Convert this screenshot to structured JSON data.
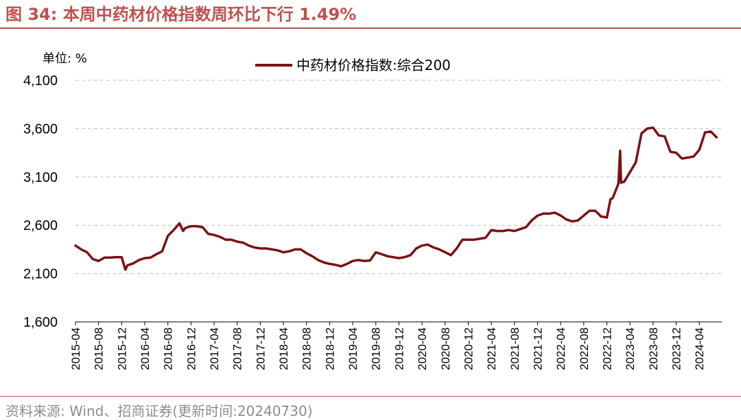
{
  "header": {
    "title": "图 34:  本周中药材价格指数周环比下行 1.49%"
  },
  "unit_label": "单位:  %",
  "source_note": "资料来源:  Wind、招商证券(更新时间:20240730)",
  "colors": {
    "accent": "#c0504d",
    "series": "#7b1113",
    "grid": "#bfbfbf",
    "source": "#8c8c8c"
  },
  "chart_data": {
    "type": "line",
    "title": "",
    "xlabel": "",
    "ylabel": "",
    "ylim": [
      1600,
      4100
    ],
    "y_ticks": [
      1600,
      2100,
      2600,
      3100,
      3600,
      4100
    ],
    "y_tick_labels": [
      "1,600",
      "2,100",
      "2,600",
      "3,100",
      "3,600",
      "4,100"
    ],
    "x_range": [
      "2015-04",
      "2024-07"
    ],
    "x_tick_labels": [
      "2015-04",
      "2015-08",
      "2015-12",
      "2016-04",
      "2016-08",
      "2016-12",
      "2017-04",
      "2017-08",
      "2017-12",
      "2018-04",
      "2018-08",
      "2018-12",
      "2019-04",
      "2019-08",
      "2019-12",
      "2020-04",
      "2020-08",
      "2020-12",
      "2021-04",
      "2021-08",
      "2021-12",
      "2022-04",
      "2022-08",
      "2022-12",
      "2023-04",
      "2023-08",
      "2023-12",
      "2024-04"
    ],
    "grid": "horizontal dashed",
    "legend_position": "top-center",
    "series": [
      {
        "name": "中药材价格指数:综合200",
        "points": [
          [
            "2015-04",
            2390
          ],
          [
            "2015-05",
            2350
          ],
          [
            "2015-06",
            2320
          ],
          [
            "2015-07",
            2250
          ],
          [
            "2015-08",
            2230
          ],
          [
            "2015-09",
            2265
          ],
          [
            "2015-10",
            2265
          ],
          [
            "2015-11",
            2270
          ],
          [
            "2015-12",
            2270
          ],
          [
            "2015-12-20",
            2140
          ],
          [
            "2016-01",
            2185
          ],
          [
            "2016-02",
            2205
          ],
          [
            "2016-03",
            2240
          ],
          [
            "2016-04",
            2260
          ],
          [
            "2016-05",
            2265
          ],
          [
            "2016-06",
            2300
          ],
          [
            "2016-07",
            2330
          ],
          [
            "2016-08",
            2490
          ],
          [
            "2016-09",
            2550
          ],
          [
            "2016-10",
            2620
          ],
          [
            "2016-10-20",
            2540
          ],
          [
            "2016-11",
            2570
          ],
          [
            "2016-12",
            2590
          ],
          [
            "2017-01",
            2590
          ],
          [
            "2017-02",
            2580
          ],
          [
            "2017-03",
            2510
          ],
          [
            "2017-04",
            2500
          ],
          [
            "2017-05",
            2480
          ],
          [
            "2017-06",
            2450
          ],
          [
            "2017-07",
            2450
          ],
          [
            "2017-08",
            2430
          ],
          [
            "2017-09",
            2420
          ],
          [
            "2017-10",
            2390
          ],
          [
            "2017-11",
            2370
          ],
          [
            "2017-12",
            2360
          ],
          [
            "2018-01",
            2360
          ],
          [
            "2018-02",
            2350
          ],
          [
            "2018-03",
            2340
          ],
          [
            "2018-04",
            2320
          ],
          [
            "2018-05",
            2330
          ],
          [
            "2018-06",
            2350
          ],
          [
            "2018-07",
            2350
          ],
          [
            "2018-08",
            2310
          ],
          [
            "2018-09",
            2280
          ],
          [
            "2018-10",
            2240
          ],
          [
            "2018-11",
            2215
          ],
          [
            "2018-12",
            2200
          ],
          [
            "2019-01",
            2190
          ],
          [
            "2019-02",
            2175
          ],
          [
            "2019-03",
            2200
          ],
          [
            "2019-04",
            2230
          ],
          [
            "2019-05",
            2240
          ],
          [
            "2019-06",
            2230
          ],
          [
            "2019-07",
            2235
          ],
          [
            "2019-08",
            2320
          ],
          [
            "2019-09",
            2300
          ],
          [
            "2019-10",
            2280
          ],
          [
            "2019-11",
            2270
          ],
          [
            "2019-12",
            2260
          ],
          [
            "2020-01",
            2270
          ],
          [
            "2020-02",
            2290
          ],
          [
            "2020-03",
            2360
          ],
          [
            "2020-04",
            2390
          ],
          [
            "2020-05",
            2400
          ],
          [
            "2020-06",
            2370
          ],
          [
            "2020-07",
            2350
          ],
          [
            "2020-08",
            2320
          ],
          [
            "2020-09",
            2290
          ],
          [
            "2020-10",
            2360
          ],
          [
            "2020-11",
            2450
          ],
          [
            "2020-12",
            2450
          ],
          [
            "2021-01",
            2450
          ],
          [
            "2021-02",
            2460
          ],
          [
            "2021-03",
            2470
          ],
          [
            "2021-04",
            2550
          ],
          [
            "2021-05",
            2540
          ],
          [
            "2021-06",
            2540
          ],
          [
            "2021-07",
            2550
          ],
          [
            "2021-08",
            2540
          ],
          [
            "2021-09",
            2560
          ],
          [
            "2021-10",
            2580
          ],
          [
            "2021-11",
            2650
          ],
          [
            "2021-12",
            2700
          ],
          [
            "2022-01",
            2720
          ],
          [
            "2022-02",
            2720
          ],
          [
            "2022-03",
            2730
          ],
          [
            "2022-04",
            2700
          ],
          [
            "2022-05",
            2660
          ],
          [
            "2022-06",
            2640
          ],
          [
            "2022-07",
            2650
          ],
          [
            "2022-08",
            2700
          ],
          [
            "2022-09",
            2750
          ],
          [
            "2022-10",
            2750
          ],
          [
            "2022-11",
            2690
          ],
          [
            "2022-12",
            2680
          ],
          [
            "2022-12-20",
            2870
          ],
          [
            "2023-01",
            2880
          ],
          [
            "2023-02",
            3030
          ],
          [
            "2023-02-10",
            3370
          ],
          [
            "2023-02-15",
            3040
          ],
          [
            "2023-03",
            3050
          ],
          [
            "2023-04",
            3150
          ],
          [
            "2023-05",
            3250
          ],
          [
            "2023-06",
            3550
          ],
          [
            "2023-07",
            3600
          ],
          [
            "2023-08",
            3610
          ],
          [
            "2023-09",
            3530
          ],
          [
            "2023-10",
            3520
          ],
          [
            "2023-11",
            3360
          ],
          [
            "2023-12",
            3350
          ],
          [
            "2024-01",
            3290
          ],
          [
            "2024-02",
            3300
          ],
          [
            "2024-03",
            3310
          ],
          [
            "2024-04",
            3380
          ],
          [
            "2024-05",
            3560
          ],
          [
            "2024-06",
            3570
          ],
          [
            "2024-07",
            3510
          ]
        ]
      }
    ]
  }
}
